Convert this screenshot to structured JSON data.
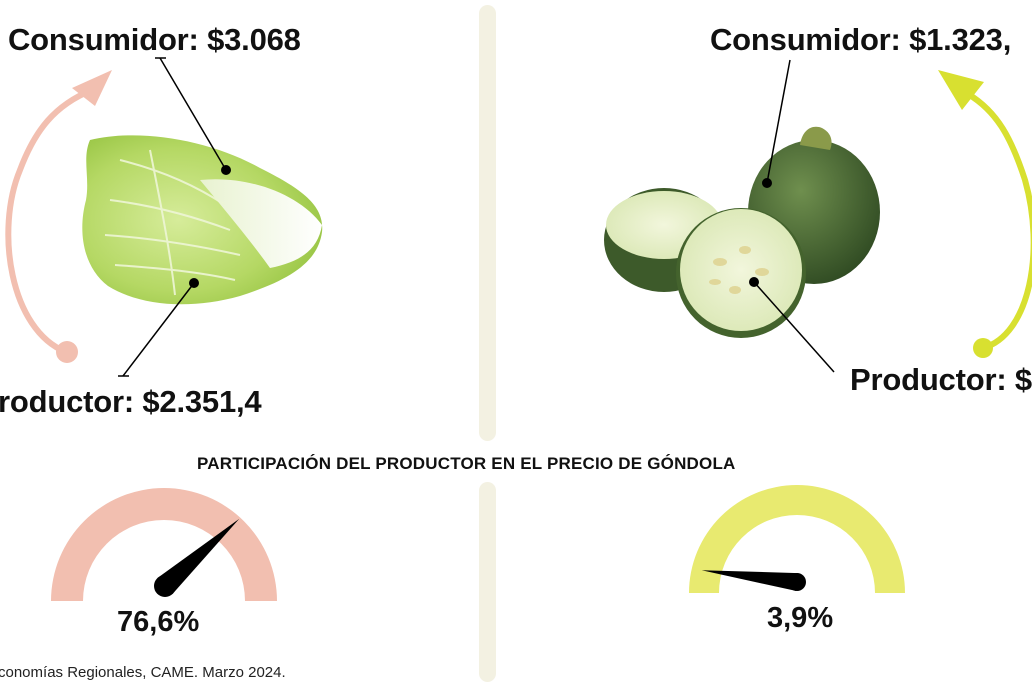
{
  "left_product": {
    "consumer_label": "Consumidor: $3.068",
    "producer_label": "roductor: $2.351,4",
    "share_value": "76,6%",
    "share_fraction": 0.766,
    "accent_color": "#f2bfb0",
    "illustration": "napa-cabbage-icon"
  },
  "right_product": {
    "consumer_label": "Consumidor: $1.323,",
    "producer_label": "Productor: $",
    "share_value": "3,9%",
    "share_fraction": 0.039,
    "accent_color": "#e8ea70",
    "arrow_color": "#d8e030",
    "illustration": "round-zucchini-icon"
  },
  "section_title": "PARTICIPACIÓN DEL PRODUCTOR EN EL PRECIO DE GÓNDOLA",
  "source_text": "conomías Regionales, CAME. Marzo 2024."
}
